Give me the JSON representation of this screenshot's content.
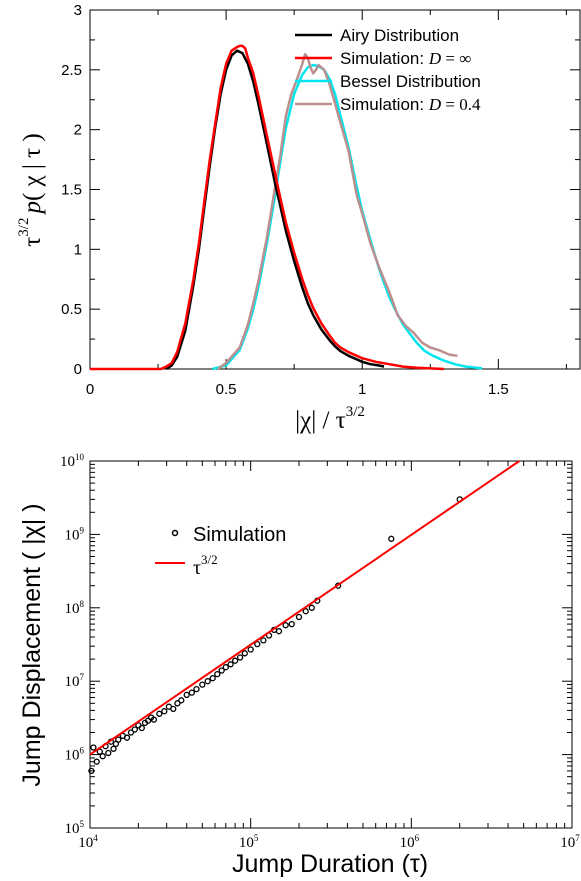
{
  "chart_data": [
    {
      "type": "line",
      "ylabel": "τ^{3/2} p( χ | τ )",
      "ylabel_parts": {
        "tau": "τ",
        "exp": "3/2",
        "p": "p",
        "rest": "( χ | τ )"
      },
      "xlabel": "|χ| / τ^{3/2}",
      "xlabel_parts": {
        "base": "|χ| / τ",
        "exp": "3/2"
      },
      "xlim": [
        0,
        1.8
      ],
      "ylim": [
        0,
        3
      ],
      "xticks": [
        "0",
        "0.5",
        "1",
        "1.5"
      ],
      "xtick_values": [
        0,
        0.5,
        1,
        1.5
      ],
      "yticks": [
        "0",
        "0.5",
        "1",
        "1.5",
        "2",
        "2.5",
        "3"
      ],
      "ytick_values": [
        0,
        0.5,
        1,
        1.5,
        2,
        2.5,
        3
      ],
      "legend_position": "top-right",
      "series": [
        {
          "name": "Airy Distribution",
          "color": "#000000",
          "x": [
            0.28,
            0.3,
            0.32,
            0.35,
            0.38,
            0.4,
            0.42,
            0.44,
            0.46,
            0.48,
            0.5,
            0.52,
            0.54,
            0.56,
            0.58,
            0.6,
            0.62,
            0.65,
            0.68,
            0.7,
            0.72,
            0.75,
            0.78,
            0.8,
            0.82,
            0.85,
            0.88,
            0.9,
            0.92,
            0.95,
            0.98,
            1.0,
            1.03,
            1.06,
            1.08
          ],
          "y": [
            0.0,
            0.03,
            0.1,
            0.32,
            0.7,
            1.0,
            1.35,
            1.7,
            2.02,
            2.3,
            2.5,
            2.62,
            2.66,
            2.64,
            2.55,
            2.4,
            2.2,
            1.88,
            1.55,
            1.35,
            1.15,
            0.9,
            0.68,
            0.55,
            0.45,
            0.33,
            0.24,
            0.19,
            0.15,
            0.11,
            0.08,
            0.06,
            0.04,
            0.03,
            0.02
          ]
        },
        {
          "name": "Simulation: D = ∞",
          "name_parts": {
            "text": "Simulation: ",
            "var": "D",
            "rest": " = ∞"
          },
          "color": "#ff0000",
          "x": [
            0.0,
            0.1,
            0.2,
            0.26,
            0.28,
            0.3,
            0.32,
            0.35,
            0.38,
            0.4,
            0.42,
            0.44,
            0.46,
            0.48,
            0.5,
            0.52,
            0.54,
            0.55,
            0.56,
            0.57,
            0.58,
            0.6,
            0.62,
            0.65,
            0.68,
            0.7,
            0.72,
            0.75,
            0.78,
            0.8,
            0.82,
            0.85,
            0.88,
            0.9,
            0.92,
            0.95,
            1.0,
            1.05,
            1.1,
            1.15,
            1.2,
            1.25,
            1.3
          ],
          "y": [
            0.0,
            0.0,
            0.0,
            0.0,
            0.02,
            0.05,
            0.14,
            0.38,
            0.75,
            1.05,
            1.4,
            1.75,
            2.05,
            2.35,
            2.55,
            2.66,
            2.69,
            2.7,
            2.7,
            2.68,
            2.6,
            2.47,
            2.27,
            1.95,
            1.63,
            1.42,
            1.22,
            0.97,
            0.75,
            0.62,
            0.51,
            0.38,
            0.28,
            0.22,
            0.18,
            0.14,
            0.09,
            0.06,
            0.04,
            0.02,
            0.01,
            0.005,
            0.0
          ]
        },
        {
          "name": "Bessel Distribution",
          "color": "#00e5ee",
          "x": [
            0.45,
            0.5,
            0.55,
            0.58,
            0.6,
            0.62,
            0.65,
            0.68,
            0.7,
            0.72,
            0.75,
            0.78,
            0.8,
            0.82,
            0.84,
            0.86,
            0.88,
            0.9,
            0.92,
            0.95,
            0.98,
            1.0,
            1.03,
            1.06,
            1.08,
            1.1,
            1.12,
            1.15,
            1.18,
            1.2,
            1.23,
            1.26,
            1.3,
            1.34,
            1.38,
            1.42,
            1.44
          ],
          "y": [
            0.0,
            0.03,
            0.16,
            0.34,
            0.5,
            0.7,
            1.05,
            1.45,
            1.75,
            2.02,
            2.3,
            2.46,
            2.52,
            2.54,
            2.53,
            2.5,
            2.42,
            2.3,
            2.12,
            1.85,
            1.52,
            1.32,
            1.08,
            0.85,
            0.72,
            0.6,
            0.5,
            0.37,
            0.28,
            0.22,
            0.15,
            0.11,
            0.07,
            0.04,
            0.02,
            0.01,
            0.005
          ]
        },
        {
          "name": "Simulation: D = 0.4",
          "name_parts": {
            "text": "Simulation: ",
            "var": "D",
            "rest": " = 0.4"
          },
          "color": "#bc8f8f",
          "x": [
            0.47,
            0.5,
            0.55,
            0.58,
            0.6,
            0.62,
            0.65,
            0.68,
            0.7,
            0.72,
            0.74,
            0.76,
            0.78,
            0.79,
            0.8,
            0.81,
            0.82,
            0.83,
            0.84,
            0.86,
            0.88,
            0.9,
            0.92,
            0.95,
            0.98,
            1.0,
            1.03,
            1.06,
            1.1,
            1.13,
            1.16,
            1.19,
            1.22,
            1.25,
            1.28,
            1.32,
            1.35
          ],
          "y": [
            0.0,
            0.05,
            0.18,
            0.37,
            0.55,
            0.75,
            1.1,
            1.52,
            1.8,
            2.12,
            2.3,
            2.42,
            2.55,
            2.63,
            2.6,
            2.52,
            2.47,
            2.5,
            2.54,
            2.5,
            2.38,
            2.22,
            2.06,
            1.82,
            1.45,
            1.3,
            1.05,
            0.86,
            0.64,
            0.45,
            0.36,
            0.3,
            0.22,
            0.18,
            0.16,
            0.12,
            0.11
          ]
        }
      ]
    },
    {
      "type": "scatter",
      "xscale": "log",
      "yscale": "log",
      "xlim": [
        10000,
        10000000
      ],
      "ylim": [
        100000,
        10000000000
      ],
      "xlabel": "Jump Duration (τ)",
      "ylabel": "Jump Displacement ( |χ| )",
      "xticks": [
        {
          "base": "10",
          "exp": "4",
          "value": 10000
        },
        {
          "base": "10",
          "exp": "5",
          "value": 100000
        },
        {
          "base": "10",
          "exp": "6",
          "value": 1000000
        },
        {
          "base": "10",
          "exp": "7",
          "value": 10000000
        }
      ],
      "yticks": [
        {
          "base": "10",
          "exp": "5",
          "value": 100000
        },
        {
          "base": "10",
          "exp": "6",
          "value": 1000000
        },
        {
          "base": "10",
          "exp": "7",
          "value": 10000000
        },
        {
          "base": "10",
          "exp": "8",
          "value": 100000000
        },
        {
          "base": "10",
          "exp": "9",
          "value": 1000000000
        },
        {
          "base": "10",
          "exp": "10",
          "value": 10000000000
        }
      ],
      "legend_position": "top-left",
      "series": [
        {
          "name": "Simulation",
          "marker": "open-circle",
          "color": "#000000",
          "points_note_free": true,
          "x": [
            10200,
            10500,
            11000,
            11500,
            12000,
            12500,
            13000,
            13500,
            14000,
            14500,
            15000,
            16000,
            17000,
            18000,
            19000,
            20000,
            21000,
            22000,
            23000,
            24000,
            25000,
            27000,
            29000,
            31000,
            33000,
            35000,
            37000,
            40000,
            43000,
            46000,
            50000,
            54000,
            58000,
            62000,
            66000,
            70000,
            75000,
            80000,
            86000,
            92000,
            100000,
            110000,
            120000,
            130000,
            140000,
            150000,
            165000,
            180000,
            200000,
            220000,
            240000,
            260000,
            350000,
            750000,
            2000000
          ],
          "y": [
            600000,
            1250000,
            800000,
            1100000,
            950000,
            1300000,
            1050000,
            1500000,
            1200000,
            1400000,
            1600000,
            1800000,
            1700000,
            2000000,
            2200000,
            2500000,
            2300000,
            2700000,
            2900000,
            3200000,
            3000000,
            3600000,
            3900000,
            4500000,
            4200000,
            5000000,
            5500000,
            6500000,
            7000000,
            7800000,
            9000000,
            10000000,
            11000000,
            12500000,
            14000000,
            15500000,
            17000000,
            19000000,
            21000000,
            24000000,
            27000000,
            32000000,
            36000000,
            42000000,
            50000000,
            48000000,
            58000000,
            60000000,
            75000000,
            90000000,
            100000000,
            125000000,
            200000000,
            870000000,
            3000000000
          ]
        },
        {
          "name": "τ^{3/2}",
          "name_parts": {
            "base": "τ",
            "exp": "3/2"
          },
          "color": "#ff0000",
          "type": "line",
          "x": [
            10000,
            4700000
          ],
          "y": [
            1000000,
            10000000000
          ]
        }
      ]
    }
  ]
}
